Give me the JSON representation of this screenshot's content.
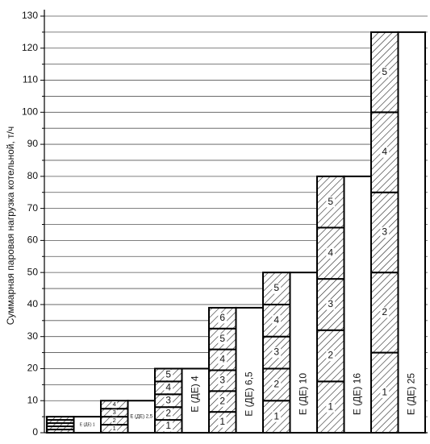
{
  "chart_data": {
    "type": "bar",
    "y_label": "Суммарная паровая нагрузка котельной, т/ч",
    "ylim": [
      0,
      130
    ],
    "yticks": [
      0,
      10,
      20,
      30,
      40,
      50,
      60,
      70,
      80,
      90,
      100,
      110,
      120,
      130
    ],
    "minor_yticks": [
      5,
      15,
      25,
      35,
      45,
      55,
      65,
      75,
      85,
      95,
      105,
      115,
      125
    ],
    "grid": true,
    "groups": [
      {
        "label": "Е (ДЕ) 1",
        "total": 5,
        "units": [
          1,
          1,
          1,
          1,
          1
        ]
      },
      {
        "label": "Е (ДЕ) 2,5",
        "total": 10,
        "units": [
          2.5,
          2.5,
          2.5,
          2.5
        ],
        "unit_labels": [
          "1",
          "2",
          "3",
          "4"
        ]
      },
      {
        "label": "Е (ДЕ) 4",
        "total": 20,
        "units": [
          4,
          4,
          4,
          4,
          4
        ],
        "unit_labels": [
          "1",
          "2",
          "3",
          "4",
          "5"
        ]
      },
      {
        "label": "Е (ДЕ) 6,5",
        "total": 39,
        "units": [
          6.5,
          6.5,
          6.5,
          6.5,
          6.5,
          6.5
        ],
        "unit_labels": [
          "1",
          "2",
          "3",
          "4",
          "5",
          "6"
        ]
      },
      {
        "label": "Е (ДЕ) 10",
        "total": 50,
        "units": [
          10,
          10,
          10,
          10,
          10
        ],
        "unit_labels": [
          "1",
          "2",
          "3",
          "4",
          "5"
        ]
      },
      {
        "label": "Е (ДЕ) 16",
        "total": 80,
        "units": [
          16,
          16,
          16,
          16,
          16
        ],
        "unit_labels": [
          "1",
          "2",
          "3",
          "4",
          "5"
        ]
      },
      {
        "label": "Е (ДЕ) 25",
        "total": 125,
        "units": [
          25,
          25,
          25,
          25,
          25
        ],
        "unit_labels": [
          "1",
          "2",
          "3",
          "4",
          "5"
        ]
      }
    ]
  }
}
